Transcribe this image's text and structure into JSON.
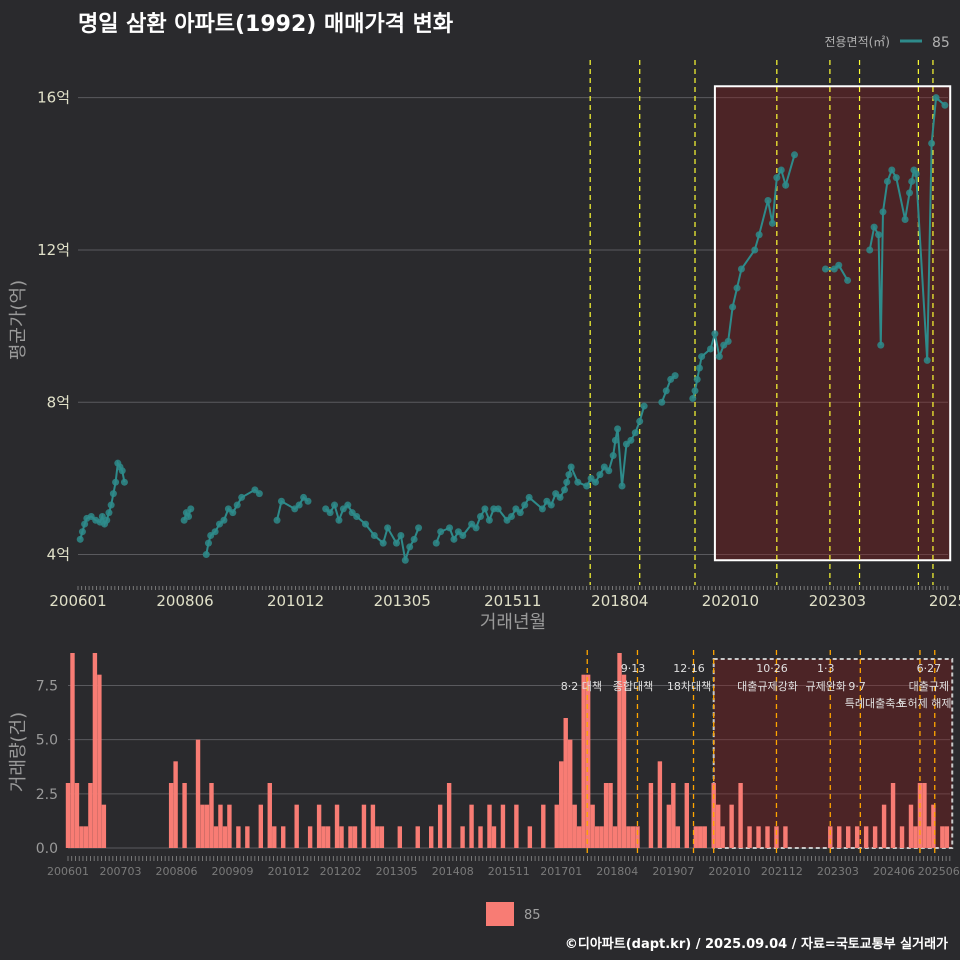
{
  "title": "명일 삼환 아파트(1992) 매매가격 변화",
  "footer": "©디아파트(dapt.kr) / 2025.09.04 / 자료=국토교통부 실거래가",
  "colors": {
    "background": "#2a2a2d",
    "line": "#2e8b8b",
    "bar": "#f87c74",
    "policy": "#ffff33",
    "policy_bottom": "#ffa500",
    "highlight": "#8b1a1a"
  },
  "chart_data": [
    {
      "type": "line",
      "title": "명일 삼환 아파트(1992) 매매가격 변화",
      "xlabel": "거래년월",
      "ylabel": "평균가(억)",
      "x_start": 2006.0,
      "x_end": 2025.67,
      "ylim": [
        3.2,
        17.2
      ],
      "yticks": [
        4,
        8,
        12,
        16
      ],
      "ytick_labels": [
        "4억",
        "8억",
        "12억",
        "16억"
      ],
      "xtick_labels": [
        "200601",
        "200806",
        "201012",
        "201305",
        "201511",
        "201804",
        "202010",
        "202303",
        "2025"
      ],
      "xtick_positions": [
        2006.0,
        2008.42,
        2010.92,
        2013.33,
        2015.83,
        2018.25,
        2020.75,
        2023.17,
        2025.67
      ],
      "legend": {
        "title": "전용면적(㎡)",
        "label": "85",
        "position": "top-right"
      },
      "policy_lines": [
        2017.58,
        2018.7,
        2019.95,
        2021.8,
        2023.0,
        2023.67,
        2025.0,
        2025.33
      ],
      "highlight_range": [
        2020.4,
        2025.72
      ],
      "series": [
        {
          "name": "85",
          "points": [
            [
              2006.05,
              4.4
            ],
            [
              2006.1,
              4.6
            ],
            [
              2006.15,
              4.8
            ],
            [
              2006.2,
              4.95
            ],
            [
              2006.3,
              5.0
            ],
            [
              2006.4,
              4.9
            ],
            [
              2006.5,
              4.85
            ],
            [
              2006.55,
              5.0
            ],
            [
              2006.6,
              4.8
            ],
            [
              2006.65,
              4.9
            ],
            [
              2006.7,
              5.1
            ],
            [
              2006.75,
              5.3
            ],
            [
              2006.8,
              5.6
            ],
            [
              2006.85,
              5.9
            ],
            [
              2006.9,
              6.4
            ],
            [
              2006.95,
              6.3
            ],
            [
              2007.0,
              6.2
            ],
            [
              2007.05,
              5.9
            ],
            [
              2008.4,
              4.9
            ],
            [
              2008.45,
              5.1
            ],
            [
              2008.5,
              5.0
            ],
            [
              2008.55,
              5.2
            ],
            [
              2008.9,
              4.0
            ],
            [
              2008.95,
              4.3
            ],
            [
              2009.0,
              4.5
            ],
            [
              2009.1,
              4.6
            ],
            [
              2009.2,
              4.8
            ],
            [
              2009.3,
              4.9
            ],
            [
              2009.4,
              5.2
            ],
            [
              2009.5,
              5.1
            ],
            [
              2009.6,
              5.3
            ],
            [
              2009.7,
              5.5
            ],
            [
              2010.0,
              5.7
            ],
            [
              2010.1,
              5.6
            ],
            [
              2010.5,
              4.9
            ],
            [
              2010.6,
              5.4
            ],
            [
              2010.9,
              5.2
            ],
            [
              2011.0,
              5.3
            ],
            [
              2011.1,
              5.5
            ],
            [
              2011.2,
              5.4
            ],
            [
              2011.6,
              5.2
            ],
            [
              2011.7,
              5.1
            ],
            [
              2011.8,
              5.3
            ],
            [
              2011.9,
              4.9
            ],
            [
              2012.0,
              5.2
            ],
            [
              2012.1,
              5.3
            ],
            [
              2012.2,
              5.1
            ],
            [
              2012.3,
              5.0
            ],
            [
              2012.5,
              4.8
            ],
            [
              2012.7,
              4.5
            ],
            [
              2012.9,
              4.3
            ],
            [
              2013.0,
              4.7
            ],
            [
              2013.2,
              4.3
            ],
            [
              2013.3,
              4.5
            ],
            [
              2013.4,
              3.85
            ],
            [
              2013.5,
              4.2
            ],
            [
              2013.6,
              4.4
            ],
            [
              2013.7,
              4.7
            ],
            [
              2014.1,
              4.3
            ],
            [
              2014.2,
              4.6
            ],
            [
              2014.4,
              4.7
            ],
            [
              2014.5,
              4.4
            ],
            [
              2014.6,
              4.6
            ],
            [
              2014.7,
              4.5
            ],
            [
              2014.9,
              4.8
            ],
            [
              2015.0,
              4.7
            ],
            [
              2015.1,
              5.0
            ],
            [
              2015.2,
              5.2
            ],
            [
              2015.3,
              4.9
            ],
            [
              2015.4,
              5.2
            ],
            [
              2015.5,
              5.2
            ],
            [
              2015.7,
              4.9
            ],
            [
              2015.8,
              5.0
            ],
            [
              2015.9,
              5.2
            ],
            [
              2016.0,
              5.1
            ],
            [
              2016.1,
              5.3
            ],
            [
              2016.2,
              5.5
            ],
            [
              2016.5,
              5.2
            ],
            [
              2016.6,
              5.4
            ],
            [
              2016.7,
              5.3
            ],
            [
              2016.8,
              5.6
            ],
            [
              2016.9,
              5.5
            ],
            [
              2017.0,
              5.7
            ],
            [
              2017.05,
              5.9
            ],
            [
              2017.1,
              6.1
            ],
            [
              2017.15,
              6.3
            ],
            [
              2017.3,
              5.9
            ],
            [
              2017.5,
              5.8
            ],
            [
              2017.6,
              6.0
            ],
            [
              2017.7,
              5.9
            ],
            [
              2017.8,
              6.1
            ],
            [
              2017.9,
              6.3
            ],
            [
              2018.0,
              6.2
            ],
            [
              2018.1,
              6.6
            ],
            [
              2018.15,
              7.0
            ],
            [
              2018.2,
              7.3
            ],
            [
              2018.3,
              5.8
            ],
            [
              2018.4,
              6.9
            ],
            [
              2018.5,
              7.0
            ],
            [
              2018.6,
              7.2
            ],
            [
              2018.7,
              7.5
            ],
            [
              2018.8,
              7.9
            ],
            [
              2019.2,
              8.0
            ],
            [
              2019.3,
              8.3
            ],
            [
              2019.4,
              8.6
            ],
            [
              2019.5,
              8.7
            ],
            [
              2019.9,
              8.1
            ],
            [
              2019.95,
              8.3
            ],
            [
              2020.0,
              8.6
            ],
            [
              2020.05,
              8.9
            ],
            [
              2020.1,
              9.2
            ],
            [
              2020.3,
              9.4
            ],
            [
              2020.4,
              9.8
            ],
            [
              2020.5,
              9.2
            ],
            [
              2020.6,
              9.5
            ],
            [
              2020.7,
              9.6
            ],
            [
              2020.8,
              10.5
            ],
            [
              2020.9,
              11.0
            ],
            [
              2021.0,
              11.5
            ],
            [
              2021.3,
              12.0
            ],
            [
              2021.4,
              12.4
            ],
            [
              2021.6,
              13.3
            ],
            [
              2021.7,
              12.7
            ],
            [
              2021.8,
              13.9
            ],
            [
              2021.9,
              14.1
            ],
            [
              2022.0,
              13.7
            ],
            [
              2022.2,
              14.5
            ],
            [
              2022.9,
              11.5
            ],
            [
              2023.1,
              11.5
            ],
            [
              2023.2,
              11.6
            ],
            [
              2023.4,
              11.2
            ],
            [
              2023.9,
              12.0
            ],
            [
              2024.0,
              12.6
            ],
            [
              2024.1,
              12.4
            ],
            [
              2024.15,
              9.5
            ],
            [
              2024.2,
              13.0
            ],
            [
              2024.3,
              13.8
            ],
            [
              2024.4,
              14.1
            ],
            [
              2024.5,
              13.9
            ],
            [
              2024.7,
              12.8
            ],
            [
              2024.8,
              13.5
            ],
            [
              2024.85,
              13.8
            ],
            [
              2024.9,
              14.1
            ],
            [
              2024.95,
              14.0
            ],
            [
              2025.2,
              9.1
            ],
            [
              2025.3,
              14.8
            ],
            [
              2025.4,
              16.0
            ],
            [
              2025.6,
              15.8
            ]
          ]
        }
      ]
    },
    {
      "type": "bar",
      "ylabel": "거래량(건)",
      "ylim": [
        0,
        9
      ],
      "yticks": [
        0,
        2.5,
        5,
        7.5
      ],
      "ytick_labels": [
        "0.0",
        "2.5",
        "5.0",
        "7.5"
      ],
      "xtick_labels": [
        "200601",
        "200703",
        "200806",
        "200909",
        "201012",
        "201202",
        "201305",
        "201408",
        "201511",
        "201701",
        "201804",
        "201907",
        "202010",
        "202112",
        "202303",
        "202406",
        "202506"
      ],
      "xtick_positions": [
        2006.0,
        2007.17,
        2008.42,
        2009.67,
        2010.92,
        2012.08,
        2013.33,
        2014.58,
        2015.83,
        2017.0,
        2018.25,
        2019.5,
        2020.75,
        2021.92,
        2023.17,
        2024.42,
        2025.42
      ],
      "legend": {
        "label": "85",
        "position": "bottom"
      },
      "x": [
        2006.0,
        2006.1,
        2006.2,
        2006.3,
        2006.4,
        2006.5,
        2006.6,
        2006.7,
        2006.8,
        2006.9,
        2008.3,
        2008.4,
        2008.6,
        2008.9,
        2009.0,
        2009.1,
        2009.2,
        2009.3,
        2009.4,
        2009.5,
        2009.6,
        2009.8,
        2010.0,
        2010.3,
        2010.5,
        2010.6,
        2010.8,
        2011.1,
        2011.4,
        2011.6,
        2011.7,
        2011.8,
        2012.0,
        2012.1,
        2012.3,
        2012.4,
        2012.6,
        2012.8,
        2012.9,
        2013.0,
        2013.4,
        2013.8,
        2014.1,
        2014.3,
        2014.5,
        2014.8,
        2015.0,
        2015.2,
        2015.4,
        2015.5,
        2015.7,
        2016.0,
        2016.3,
        2016.6,
        2016.9,
        2017.0,
        2017.1,
        2017.2,
        2017.3,
        2017.4,
        2017.5,
        2017.6,
        2017.7,
        2017.8,
        2017.9,
        2018.0,
        2018.1,
        2018.2,
        2018.3,
        2018.4,
        2018.5,
        2018.6,
        2018.7,
        2019.0,
        2019.2,
        2019.4,
        2019.5,
        2019.6,
        2019.8,
        2020.0,
        2020.1,
        2020.2,
        2020.4,
        2020.5,
        2020.6,
        2020.8,
        2021.0,
        2021.2,
        2021.4,
        2021.6,
        2021.8,
        2022.0,
        2023.0,
        2023.2,
        2023.4,
        2023.6,
        2023.8,
        2024.0,
        2024.2,
        2024.4,
        2024.6,
        2024.8,
        2024.9,
        2025.0,
        2025.1,
        2025.2,
        2025.3,
        2025.5,
        2025.6
      ],
      "values": [
        3,
        9,
        3,
        1,
        1,
        3,
        9,
        8,
        2,
        0,
        3,
        4,
        3,
        5,
        2,
        2,
        3,
        1,
        2,
        1,
        2,
        1,
        1,
        2,
        3,
        1,
        1,
        2,
        1,
        2,
        1,
        1,
        2,
        1,
        1,
        1,
        2,
        2,
        1,
        1,
        1,
        1,
        1,
        2,
        3,
        1,
        2,
        1,
        2,
        1,
        2,
        2,
        1,
        2,
        2,
        4,
        6,
        5,
        2,
        1,
        8,
        8,
        2,
        1,
        1,
        3,
        3,
        1,
        9,
        8,
        1,
        1,
        1,
        3,
        4,
        2,
        3,
        1,
        3,
        1,
        1,
        1,
        3,
        2,
        1,
        2,
        3,
        1,
        1,
        1,
        1,
        1,
        1,
        1,
        1,
        1,
        1,
        1,
        2,
        3,
        1,
        2,
        1,
        3,
        3,
        1,
        2,
        1,
        1
      ],
      "policy_lines": [
        2017.58,
        2018.7,
        2019.95,
        2020.4,
        2021.8,
        2023.0,
        2023.67,
        2025.0,
        2025.33
      ],
      "highlight_range": [
        2020.4,
        2025.72
      ],
      "annotations": [
        {
          "x": 2017.45,
          "row": 1,
          "text": "8·2 대책"
        },
        {
          "x": 2018.6,
          "row": 0,
          "text": "9·13"
        },
        {
          "x": 2018.6,
          "row": 1,
          "text": "종합대책"
        },
        {
          "x": 2019.85,
          "row": 0,
          "text": "12·16"
        },
        {
          "x": 2019.85,
          "row": 1,
          "text": "18차대책"
        },
        {
          "x": 2021.7,
          "row": 0,
          "text": "10·26"
        },
        {
          "x": 2021.6,
          "row": 1,
          "text": "대출규제강화"
        },
        {
          "x": 2022.9,
          "row": 0,
          "text": "1·3"
        },
        {
          "x": 2022.9,
          "row": 1,
          "text": "규제완화"
        },
        {
          "x": 2023.6,
          "row": 1,
          "text": "9·7"
        },
        {
          "x": 2024.0,
          "row": 2,
          "text": "특례대출축소"
        },
        {
          "x": 2025.2,
          "row": 0,
          "text": "6·27"
        },
        {
          "x": 2025.2,
          "row": 1,
          "text": "대출규제"
        },
        {
          "x": 2025.1,
          "row": 2,
          "text": "토허제 해제"
        }
      ]
    }
  ]
}
